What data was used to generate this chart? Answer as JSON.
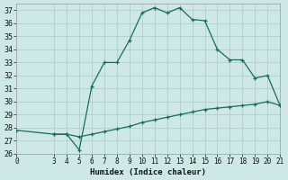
{
  "xlabel": "Humidex (Indice chaleur)",
  "background_color": "#cde8e5",
  "grid_color": "#b0d0cc",
  "line_color": "#1a6b5a",
  "line1_x": [
    3,
    4,
    5,
    6,
    7,
    8,
    9,
    10,
    11,
    12,
    13,
    14,
    15,
    16,
    17,
    18,
    19,
    20,
    21
  ],
  "line1_y": [
    27.5,
    27.5,
    26.3,
    31.2,
    33.0,
    33.0,
    34.7,
    36.8,
    37.2,
    36.8,
    37.2,
    36.3,
    36.2,
    34.0,
    33.2,
    33.2,
    31.8,
    32.0,
    29.7
  ],
  "line2_x": [
    0,
    3,
    4,
    5,
    6,
    7,
    8,
    9,
    10,
    11,
    12,
    13,
    14,
    15,
    16,
    17,
    18,
    19,
    20,
    21
  ],
  "line2_y": [
    27.8,
    27.5,
    27.5,
    27.3,
    27.5,
    27.7,
    27.9,
    28.1,
    28.4,
    28.6,
    28.8,
    29.0,
    29.2,
    29.4,
    29.5,
    29.6,
    29.7,
    29.8,
    30.0,
    29.7
  ],
  "xlim": [
    0,
    21
  ],
  "ylim": [
    26,
    37.5
  ],
  "xticks": [
    0,
    3,
    4,
    5,
    6,
    7,
    8,
    9,
    10,
    11,
    12,
    13,
    14,
    15,
    16,
    17,
    18,
    19,
    20,
    21
  ],
  "yticks": [
    26,
    27,
    28,
    29,
    30,
    31,
    32,
    33,
    34,
    35,
    36,
    37
  ]
}
